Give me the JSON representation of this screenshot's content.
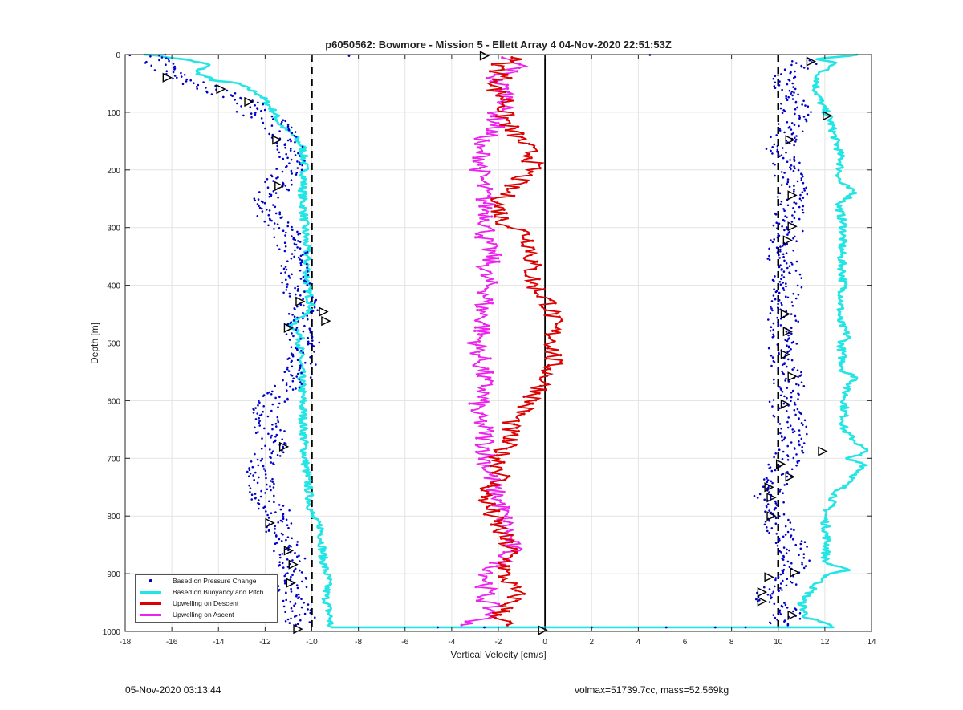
{
  "chart_data": {
    "type": "scatter",
    "title": "p6050562: Bowmore - Mission 5 - Ellett Array 4 04-Nov-2020 22:51:53Z",
    "xlabel": "Vertical Velocity [cm/s]",
    "ylabel": "Depth [m]",
    "xlim": [
      -18,
      14
    ],
    "ylim": [
      0,
      1000
    ],
    "y_reversed": true,
    "grid": true,
    "legend_location": "bottom-left",
    "x_ticks": [
      "-18",
      "-16",
      "-14",
      "-12",
      "-10",
      "-8",
      "-6",
      "-4",
      "-2",
      "0",
      "2",
      "4",
      "6",
      "8",
      "10",
      "12",
      "14"
    ],
    "y_ticks": [
      "0",
      "100",
      "200",
      "300",
      "400",
      "500",
      "600",
      "700",
      "800",
      "900",
      "1000"
    ],
    "reference_lines": [
      {
        "x": -10,
        "style": "dashed",
        "color": "#000000"
      },
      {
        "x": 0,
        "style": "solid",
        "color": "#000000"
      },
      {
        "x": 10,
        "style": "dashed",
        "color": "#000000"
      }
    ],
    "series": [
      {
        "name": "Based on Pressure Change",
        "color": "#0000cc",
        "style": "points",
        "profiles": [
          {
            "side": "left",
            "depth": [
              0,
              20,
              40,
              60,
              80,
              100,
              120,
              140,
              160,
              180,
              200,
              230,
              260,
              290,
              320,
              350,
              380,
              410,
              440,
              470,
              500,
              530,
              560,
              590,
              620,
              650,
              680,
              710,
              740,
              770,
              800,
              830,
              860,
              890,
              920,
              950,
              980,
              990
            ],
            "velocity": [
              -16.8,
              -16.5,
              -15.8,
              -14.3,
              -12.8,
              -12.6,
              -11.5,
              -11.2,
              -11.0,
              -10.8,
              -11.0,
              -11.5,
              -12.0,
              -11.6,
              -10.9,
              -10.8,
              -10.7,
              -10.6,
              -10.2,
              -10.8,
              -10.3,
              -10.4,
              -10.6,
              -11.5,
              -12.0,
              -11.8,
              -11.6,
              -12.2,
              -12.3,
              -12.0,
              -11.4,
              -11.3,
              -11.0,
              -10.8,
              -10.9,
              -10.6,
              -10.5,
              -10.4
            ]
          },
          {
            "side": "right",
            "depth": [
              10,
              40,
              70,
              100,
              130,
              160,
              190,
              220,
              250,
              280,
              310,
              340,
              370,
              400,
              430,
              460,
              490,
              520,
              550,
              580,
              610,
              640,
              670,
              700,
              730,
              760,
              790,
              820,
              850,
              880,
              910,
              940,
              970,
              990
            ],
            "velocity": [
              11.2,
              10.2,
              10.3,
              10.8,
              10.5,
              10.0,
              10.3,
              10.6,
              10.6,
              10.5,
              10.4,
              10.1,
              10.3,
              10.4,
              10.3,
              10.2,
              10.3,
              10.1,
              10.4,
              10.5,
              10.2,
              10.6,
              10.8,
              10.3,
              10.1,
              9.6,
              9.7,
              10.0,
              10.6,
              10.7,
              10.4,
              9.5,
              10.4,
              10.2
            ]
          }
        ]
      },
      {
        "name": "Based on Buoyancy and Pitch",
        "color": "#22e5e5",
        "style": "line",
        "profiles": [
          {
            "side": "left",
            "depth": [
              0,
              10,
              18,
              30,
              45,
              50,
              70,
              100,
              120,
              140,
              160,
              200,
              240,
              300,
              350,
              400,
              440,
              460,
              470,
              480,
              520,
              600,
              700,
              800,
              820,
              880,
              910,
              940,
              980,
              993
            ],
            "velocity": [
              -17.0,
              -15.2,
              -14.4,
              -15.0,
              -14.2,
              -13.2,
              -12.2,
              -11.6,
              -11.4,
              -10.8,
              -10.4,
              -10.3,
              -10.4,
              -10.3,
              -10.2,
              -10.2,
              -10.0,
              -10.6,
              -11.0,
              -10.5,
              -10.5,
              -10.4,
              -10.3,
              -10.0,
              -9.6,
              -9.5,
              -9.3,
              -9.4,
              -9.2,
              -9.2
            ]
          },
          {
            "side": "right",
            "depth": [
              0,
              8,
              15,
              30,
              60,
              90,
              110,
              140,
              180,
              220,
              240,
              260,
              300,
              350,
              400,
              460,
              490,
              500,
              550,
              560,
              580,
              650,
              690,
              700,
              710,
              760,
              800,
              850,
              880,
              895,
              900,
              920,
              950,
              975,
              993
            ],
            "velocity": [
              13.4,
              11.6,
              12.6,
              11.8,
              11.6,
              11.9,
              12.2,
              12.4,
              12.7,
              12.6,
              13.3,
              12.6,
              12.8,
              12.7,
              12.8,
              12.6,
              13.0,
              12.7,
              12.8,
              13.4,
              12.9,
              12.8,
              13.8,
              12.8,
              13.8,
              12.5,
              12.0,
              12.1,
              12.0,
              13.0,
              12.2,
              11.6,
              11.0,
              11.2,
              12.4
            ]
          }
        ]
      },
      {
        "name": "Upwelling on Descent",
        "color": "#dd0000",
        "style": "line-markers",
        "depth": [
          5,
          20,
          40,
          60,
          80,
          100,
          130,
          160,
          180,
          200,
          230,
          260,
          290,
          310,
          340,
          370,
          400,
          430,
          460,
          500,
          540,
          580,
          610,
          640,
          670,
          700,
          730,
          760,
          790,
          820,
          860,
          900,
          940,
          970,
          990
        ],
        "velocity": [
          -1.2,
          -2.0,
          -1.8,
          -2.2,
          -1.6,
          -1.8,
          -1.5,
          -0.8,
          -0.5,
          -0.6,
          -1.5,
          -2.0,
          -1.8,
          -0.8,
          -0.5,
          -0.6,
          -0.5,
          0.2,
          0.3,
          0.4,
          0.3,
          -0.2,
          -0.8,
          -1.5,
          -1.6,
          -2.0,
          -1.8,
          -2.6,
          -2.4,
          -2.0,
          -1.5,
          -1.8,
          -1.2,
          -2.0,
          -1.6
        ]
      },
      {
        "name": "Upwelling on Ascent",
        "color": "#ee22ee",
        "style": "line-markers",
        "depth": [
          5,
          20,
          40,
          60,
          80,
          100,
          130,
          160,
          180,
          200,
          230,
          260,
          290,
          320,
          350,
          380,
          410,
          440,
          470,
          500,
          540,
          580,
          620,
          650,
          680,
          710,
          740,
          770,
          800,
          830,
          860,
          900,
          940,
          970,
          990
        ],
        "velocity": [
          -2.0,
          -1.0,
          -2.2,
          -1.8,
          -1.5,
          -2.0,
          -2.2,
          -3.0,
          -2.6,
          -2.8,
          -2.7,
          -2.5,
          -2.4,
          -2.6,
          -2.3,
          -2.6,
          -2.4,
          -2.7,
          -2.6,
          -2.9,
          -2.7,
          -2.6,
          -3.0,
          -2.6,
          -2.5,
          -2.5,
          -2.3,
          -2.0,
          -1.8,
          -1.6,
          -1.4,
          -2.4,
          -2.6,
          -2.2,
          -3.4
        ]
      }
    ],
    "markers": {
      "left": [
        [
          -16.2,
          40
        ],
        [
          -13.9,
          60
        ],
        [
          -12.7,
          82
        ],
        [
          -11.5,
          148
        ],
        [
          -11.4,
          228
        ],
        [
          -10.5,
          428
        ],
        [
          -9.5,
          446
        ],
        [
          -9.4,
          462
        ],
        [
          -11.0,
          474
        ],
        [
          -11.2,
          680
        ],
        [
          -11.8,
          812
        ],
        [
          -11.0,
          860
        ],
        [
          -10.8,
          884
        ],
        [
          -10.9,
          916
        ],
        [
          -10.6,
          996
        ]
      ],
      "right": [
        [
          11.4,
          12
        ],
        [
          12.1,
          106
        ],
        [
          10.5,
          148
        ],
        [
          10.6,
          244
        ],
        [
          10.6,
          298
        ],
        [
          10.4,
          322
        ],
        [
          10.3,
          450
        ],
        [
          10.4,
          480
        ],
        [
          10.3,
          520
        ],
        [
          10.6,
          558
        ],
        [
          10.3,
          606
        ],
        [
          11.9,
          688
        ],
        [
          10.1,
          710
        ],
        [
          10.5,
          732
        ],
        [
          9.6,
          750
        ],
        [
          9.7,
          768
        ],
        [
          9.7,
          800
        ],
        [
          10.7,
          898
        ],
        [
          9.6,
          906
        ],
        [
          9.3,
          932
        ],
        [
          9.3,
          948
        ],
        [
          10.6,
          972
        ],
        [
          -0.1,
          998
        ]
      ],
      "top": [
        [
          -2.6,
          2
        ]
      ]
    }
  },
  "footer": {
    "timestamp": "05-Nov-2020 03:13:44",
    "stats": "volmax=51739.7cc, mass=52.569kg"
  }
}
